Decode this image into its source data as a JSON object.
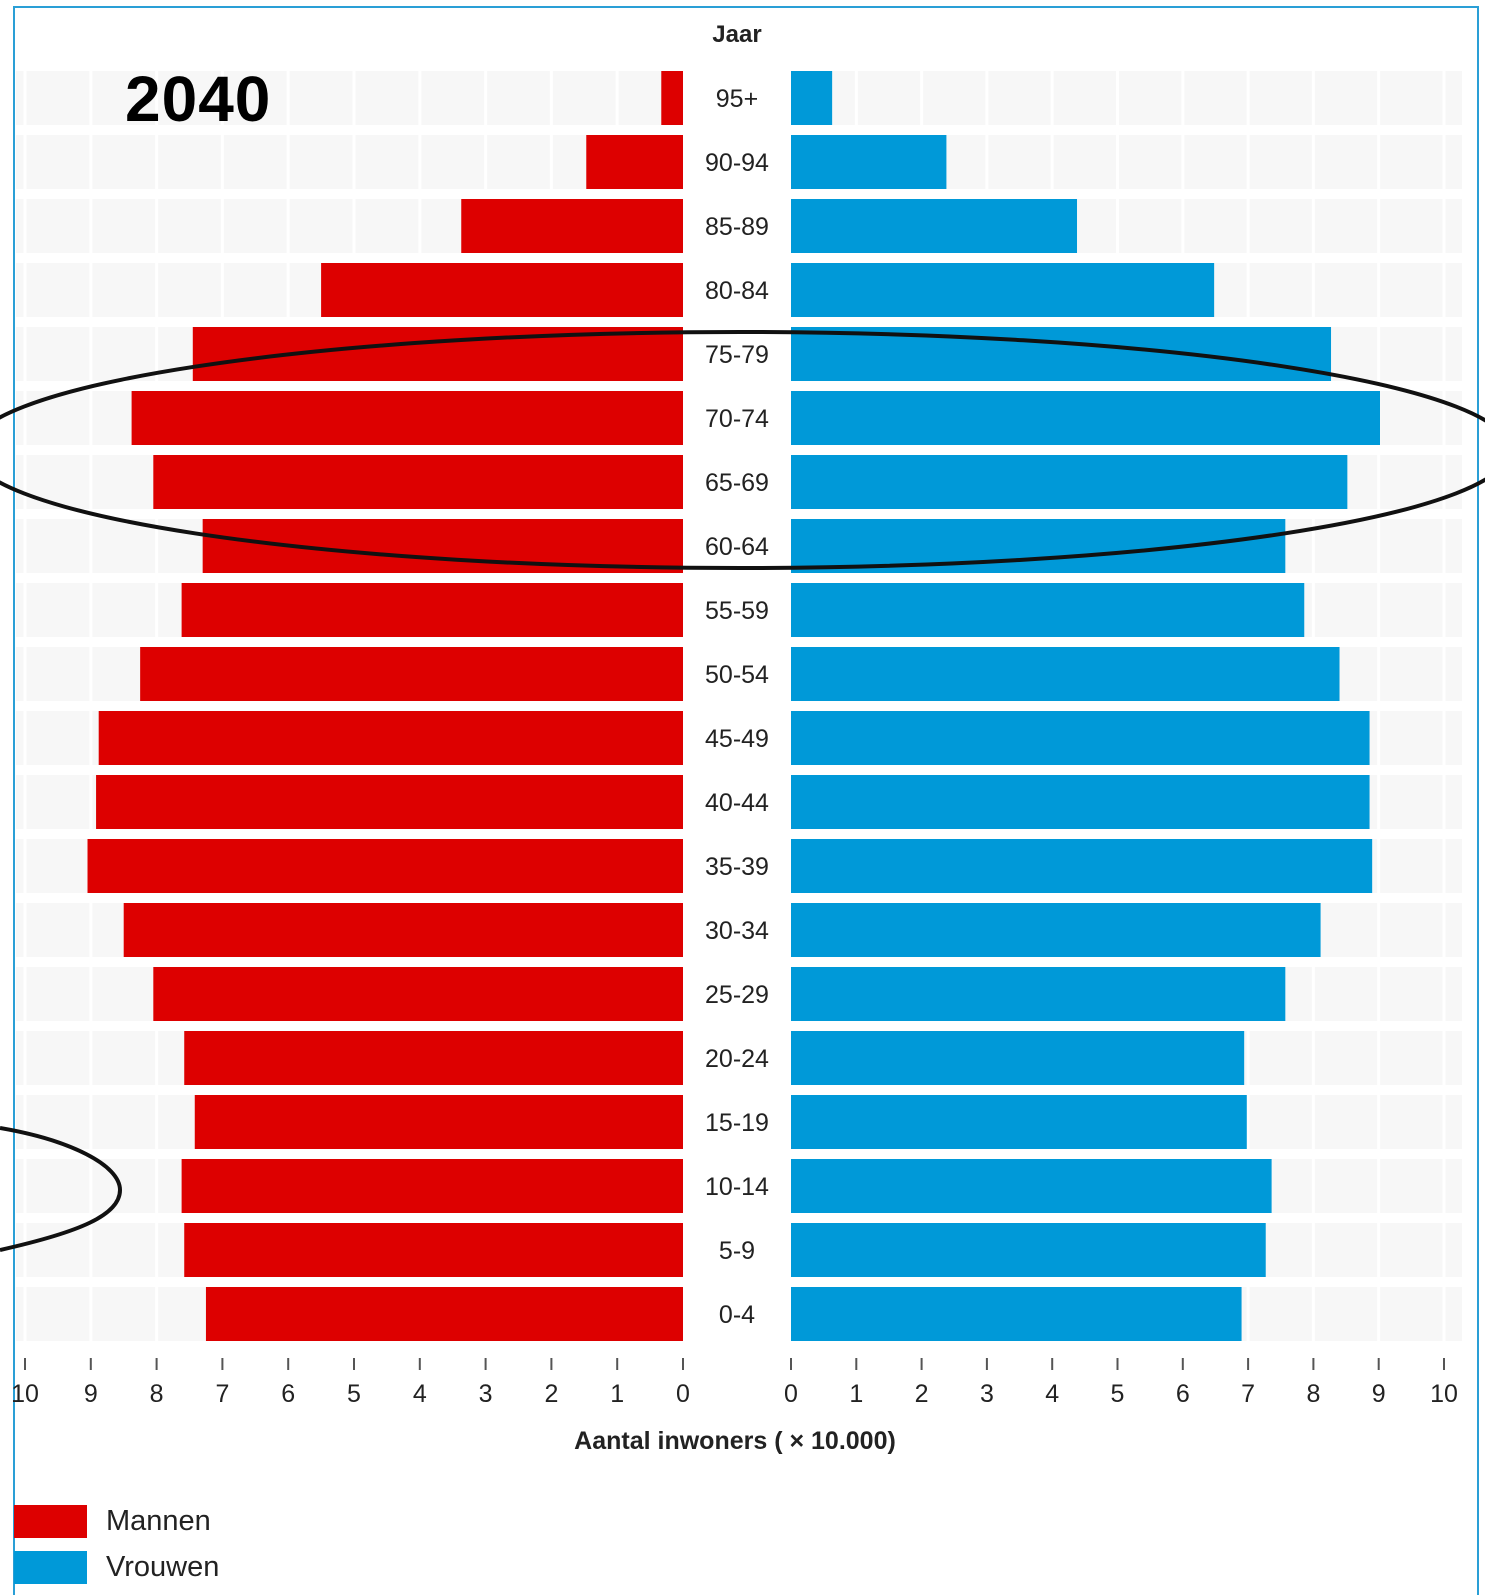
{
  "year": "2040",
  "chart_data": {
    "type": "bar",
    "orientation": "horizontal-population-pyramid",
    "center_label": "Jaar",
    "xlabel": "Aantal inwoners ( × 10.000)",
    "xlim": [
      0,
      10
    ],
    "ticks": [
      "10",
      "9",
      "8",
      "7",
      "6",
      "5",
      "4",
      "3",
      "2",
      "1",
      "0"
    ],
    "ticks_right": [
      "0",
      "1",
      "2",
      "3",
      "4",
      "5",
      "6",
      "7",
      "8",
      "9",
      "10"
    ],
    "categories": [
      "95+",
      "90-94",
      "85-89",
      "80-84",
      "75-79",
      "70-74",
      "65-69",
      "60-64",
      "55-59",
      "50-54",
      "45-49",
      "40-44",
      "35-39",
      "30-34",
      "25-29",
      "20-24",
      "15-19",
      "10-14",
      "5-9",
      "0-4"
    ],
    "series": [
      {
        "name": "Mannen",
        "color": "#dd0000",
        "values": [
          0.33,
          1.47,
          3.37,
          5.5,
          7.45,
          8.38,
          8.05,
          7.3,
          7.62,
          8.25,
          8.88,
          8.92,
          9.05,
          8.5,
          8.05,
          7.58,
          7.42,
          7.62,
          7.58,
          7.25
        ]
      },
      {
        "name": "Vrouwen",
        "color": "#0099d8",
        "values": [
          0.63,
          2.38,
          4.38,
          6.48,
          8.27,
          9.02,
          8.52,
          7.57,
          7.86,
          8.4,
          8.86,
          8.86,
          8.9,
          8.11,
          7.57,
          6.94,
          6.98,
          7.36,
          7.27,
          6.9
        ]
      }
    ],
    "grid": true,
    "legend": "bottom-left",
    "annotations": [
      "ellipse around 60-79 age groups",
      "partial ellipse around 10-19 age groups"
    ]
  },
  "legend_items": [
    {
      "label": "Mannen",
      "color": "#dd0000"
    },
    {
      "label": "Vrouwen",
      "color": "#0099d8"
    }
  ],
  "colors": {
    "frame": "#2a9fd6",
    "panel_light": "#f7f7f7",
    "panel_dark": "#ededed",
    "grid": "#ffffff"
  }
}
